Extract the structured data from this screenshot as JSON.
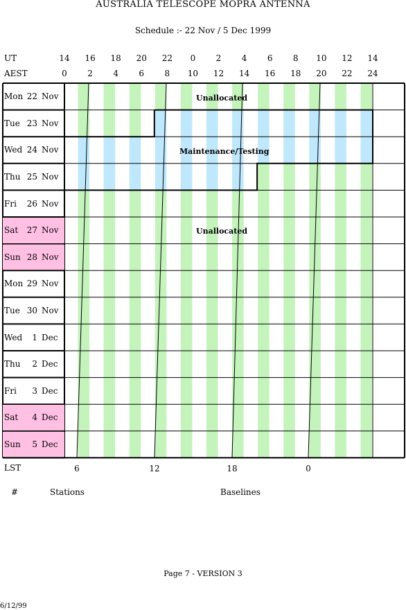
{
  "header": {
    "title": "AUSTRALIA TELESCOPE MOPRA ANTENNA",
    "subtitle": "Schedule :- 22 Nov / 5 Dec 1999"
  },
  "axes": {
    "ut_label": "UT",
    "aest_label": "AEST",
    "lst_label": "LST",
    "ut_hours": [
      "14",
      "16",
      "18",
      "20",
      "22",
      "0",
      "2",
      "4",
      "6",
      "8",
      "10",
      "12",
      "14"
    ],
    "aest_hours": [
      "0",
      "2",
      "4",
      "6",
      "8",
      "10",
      "12",
      "14",
      "16",
      "18",
      "20",
      "22",
      "24"
    ],
    "lst_ticks": [
      "6",
      "12",
      "18",
      "0"
    ]
  },
  "days": [
    {
      "dow": "Mon",
      "day": "22",
      "mon": "Nov",
      "weekend": false
    },
    {
      "dow": "Tue",
      "day": "23",
      "mon": "Nov",
      "weekend": false
    },
    {
      "dow": "Wed",
      "day": "24",
      "mon": "Nov",
      "weekend": false
    },
    {
      "dow": "Thu",
      "day": "25",
      "mon": "Nov",
      "weekend": false
    },
    {
      "dow": "Fri",
      "day": "26",
      "mon": "Nov",
      "weekend": false
    },
    {
      "dow": "Sat",
      "day": "27",
      "mon": "Nov",
      "weekend": true
    },
    {
      "dow": "Sun",
      "day": "28",
      "mon": "Nov",
      "weekend": true
    },
    {
      "dow": "Mon",
      "day": "29",
      "mon": "Nov",
      "weekend": false
    },
    {
      "dow": "Tue",
      "day": "30",
      "mon": "Nov",
      "weekend": false
    },
    {
      "dow": "Wed",
      "day": "1",
      "mon": "Dec",
      "weekend": false
    },
    {
      "dow": "Thu",
      "day": "2",
      "mon": "Dec",
      "weekend": false
    },
    {
      "dow": "Fri",
      "day": "3",
      "mon": "Dec",
      "weekend": false
    },
    {
      "dow": "Sat",
      "day": "4",
      "mon": "Dec",
      "weekend": true
    },
    {
      "dow": "Sun",
      "day": "5",
      "mon": "Dec",
      "weekend": true
    }
  ],
  "blocks": {
    "unallocated_top": "Unallocated",
    "maintenance": "Maintenance/Testing",
    "unallocated_main": "Unallocated"
  },
  "footer": {
    "hash": "#",
    "stations": "Stations",
    "baselines": "Baselines",
    "page": "Page 7 - VERSION 3",
    "date": "6/12/99"
  },
  "colors": {
    "green_stripe": "#c4f4bc",
    "blue_stripe": "#c0e8fc",
    "weekend": "#ffc0e4"
  }
}
